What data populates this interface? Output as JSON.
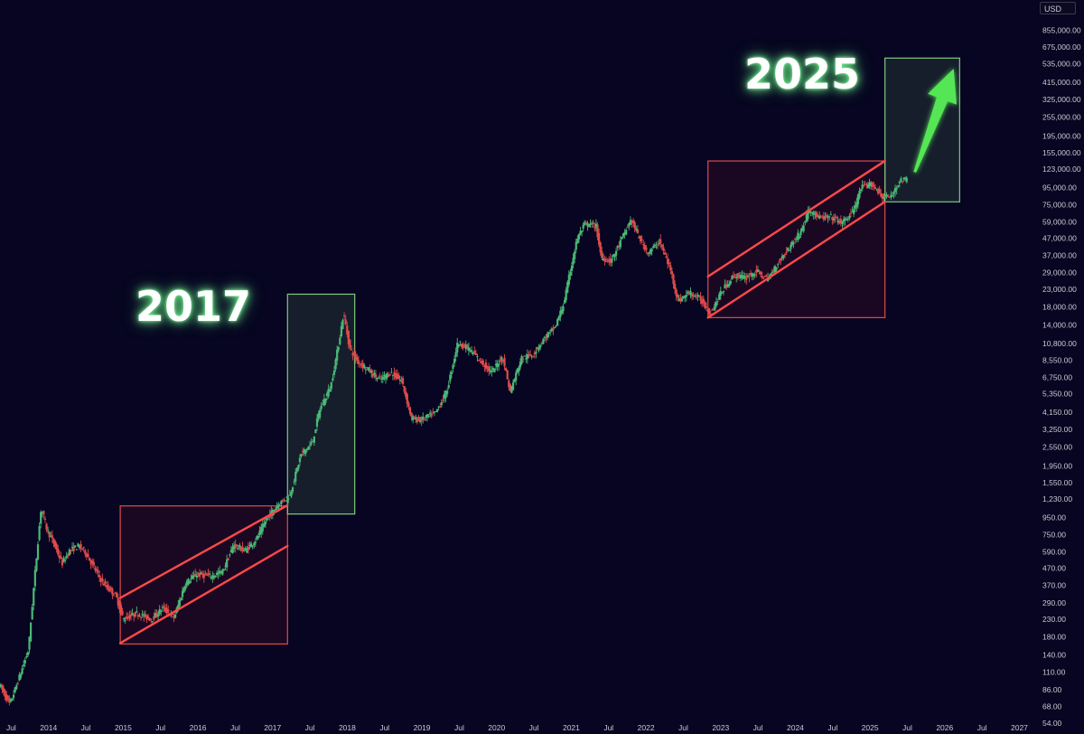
{
  "currency": "USD",
  "annotations": {
    "left": "2017",
    "right": "2025"
  },
  "colors": {
    "background": "#070521",
    "up_candle": "#4bb876",
    "down_candle": "#e04b4b",
    "accumulation_box": "#e04b4b",
    "breakout_box": "#7fc97f",
    "arrow": "#55e655",
    "axis_text": "#c9c9d4"
  },
  "chart_data": {
    "type": "candlestick",
    "scale": "log",
    "xlim": [
      2013.35,
      2027.2
    ],
    "ylim": [
      54,
      1150000
    ],
    "y_ticks": [
      "855,000.00",
      "675,000.00",
      "535,000.00",
      "415,000.00",
      "325,000.00",
      "255,000.00",
      "195,000.00",
      "155,000.00",
      "123,000.00",
      "95,000.00",
      "75,000.00",
      "59,000.00",
      "47,000.00",
      "37,000.00",
      "29,000.00",
      "23,000.00",
      "18,000.00",
      "14,000.00",
      "10,800.00",
      "8,550.00",
      "6,750.00",
      "5,350.00",
      "4,150.00",
      "3,250.00",
      "2,550.00",
      "1,950.00",
      "1,550.00",
      "1,230.00",
      "950.00",
      "750.00",
      "590.00",
      "470.00",
      "370.00",
      "290.00",
      "230.00",
      "180.00",
      "140.00",
      "110.00",
      "86.00",
      "68.00",
      "54.00"
    ],
    "x_ticks": [
      {
        "label": "Jul",
        "t": 2013.5
      },
      {
        "label": "2014",
        "t": 2014.0
      },
      {
        "label": "Jul",
        "t": 2014.5
      },
      {
        "label": "2015",
        "t": 2015.0
      },
      {
        "label": "Jul",
        "t": 2015.5
      },
      {
        "label": "2016",
        "t": 2016.0
      },
      {
        "label": "Jul",
        "t": 2016.5
      },
      {
        "label": "2017",
        "t": 2017.0
      },
      {
        "label": "Jul",
        "t": 2017.5
      },
      {
        "label": "2018",
        "t": 2018.0
      },
      {
        "label": "Jul",
        "t": 2018.5
      },
      {
        "label": "2019",
        "t": 2019.0
      },
      {
        "label": "Jul",
        "t": 2019.5
      },
      {
        "label": "2020",
        "t": 2020.0
      },
      {
        "label": "Jul",
        "t": 2020.5
      },
      {
        "label": "2021",
        "t": 2021.0
      },
      {
        "label": "Jul",
        "t": 2021.5
      },
      {
        "label": "2022",
        "t": 2022.0
      },
      {
        "label": "Jul",
        "t": 2022.5
      },
      {
        "label": "2023",
        "t": 2023.0
      },
      {
        "label": "Jul",
        "t": 2023.5
      },
      {
        "label": "2024",
        "t": 2024.0
      },
      {
        "label": "Jul",
        "t": 2024.5
      },
      {
        "label": "2025",
        "t": 2025.0
      },
      {
        "label": "Jul",
        "t": 2025.5
      },
      {
        "label": "2026",
        "t": 2026.0
      },
      {
        "label": "Jul",
        "t": 2026.5
      },
      {
        "label": "2027",
        "t": 2027.0
      }
    ],
    "price_path": [
      [
        2013.35,
        95
      ],
      [
        2013.5,
        70
      ],
      [
        2013.62,
        100
      ],
      [
        2013.75,
        150
      ],
      [
        2013.83,
        400
      ],
      [
        2013.92,
        1100
      ],
      [
        2014.0,
        800
      ],
      [
        2014.1,
        650
      ],
      [
        2014.2,
        500
      ],
      [
        2014.3,
        600
      ],
      [
        2014.42,
        640
      ],
      [
        2014.5,
        600
      ],
      [
        2014.62,
        480
      ],
      [
        2014.75,
        380
      ],
      [
        2014.92,
        320
      ],
      [
        2015.02,
        230
      ],
      [
        2015.2,
        250
      ],
      [
        2015.4,
        230
      ],
      [
        2015.55,
        270
      ],
      [
        2015.7,
        235
      ],
      [
        2015.85,
        380
      ],
      [
        2016.0,
        430
      ],
      [
        2016.2,
        420
      ],
      [
        2016.35,
        450
      ],
      [
        2016.5,
        650
      ],
      [
        2016.65,
        600
      ],
      [
        2016.8,
        700
      ],
      [
        2016.95,
        950
      ],
      [
        2017.1,
        1150
      ],
      [
        2017.25,
        1300
      ],
      [
        2017.4,
        2300
      ],
      [
        2017.55,
        2700
      ],
      [
        2017.65,
        4300
      ],
      [
        2017.8,
        6000
      ],
      [
        2017.9,
        10500
      ],
      [
        2017.97,
        16500
      ],
      [
        2018.05,
        10200
      ],
      [
        2018.15,
        8500
      ],
      [
        2018.3,
        7500
      ],
      [
        2018.45,
        6500
      ],
      [
        2018.6,
        7200
      ],
      [
        2018.75,
        6400
      ],
      [
        2018.88,
        3800
      ],
      [
        2019.0,
        3700
      ],
      [
        2019.2,
        4100
      ],
      [
        2019.35,
        5500
      ],
      [
        2019.5,
        11000
      ],
      [
        2019.65,
        10000
      ],
      [
        2019.8,
        8500
      ],
      [
        2019.95,
        7200
      ],
      [
        2020.1,
        9000
      ],
      [
        2020.2,
        5500
      ],
      [
        2020.35,
        8800
      ],
      [
        2020.5,
        9200
      ],
      [
        2020.65,
        11500
      ],
      [
        2020.8,
        13500
      ],
      [
        2020.92,
        19000
      ],
      [
        2021.0,
        29000
      ],
      [
        2021.1,
        47000
      ],
      [
        2021.2,
        57000
      ],
      [
        2021.35,
        56000
      ],
      [
        2021.42,
        36000
      ],
      [
        2021.55,
        34000
      ],
      [
        2021.7,
        47000
      ],
      [
        2021.82,
        61000
      ],
      [
        2021.92,
        48000
      ],
      [
        2022.05,
        38000
      ],
      [
        2022.2,
        45000
      ],
      [
        2022.35,
        30000
      ],
      [
        2022.45,
        19500
      ],
      [
        2022.6,
        22000
      ],
      [
        2022.75,
        20000
      ],
      [
        2022.88,
        16500
      ],
      [
        2023.05,
        23000
      ],
      [
        2023.2,
        28000
      ],
      [
        2023.35,
        27000
      ],
      [
        2023.5,
        29500
      ],
      [
        2023.65,
        26500
      ],
      [
        2023.8,
        34000
      ],
      [
        2023.95,
        42000
      ],
      [
        2024.1,
        52000
      ],
      [
        2024.2,
        70000
      ],
      [
        2024.35,
        62000
      ],
      [
        2024.5,
        63000
      ],
      [
        2024.65,
        58000
      ],
      [
        2024.8,
        69000
      ],
      [
        2024.9,
        95000
      ],
      [
        2025.05,
        100000
      ],
      [
        2025.18,
        84000
      ],
      [
        2025.3,
        83000
      ],
      [
        2025.4,
        103000
      ],
      [
        2025.5,
        107000
      ]
    ],
    "boxes": [
      {
        "kind": "accumulation",
        "t0": 2014.96,
        "t1": 2017.2,
        "p_low": 163,
        "p_high": 1120
      },
      {
        "kind": "breakout",
        "t0": 2017.2,
        "t1": 2018.1,
        "p_low": 1000,
        "p_high": 21500
      },
      {
        "kind": "accumulation",
        "t0": 2022.83,
        "t1": 2025.2,
        "p_low": 15500,
        "p_high": 138000
      },
      {
        "kind": "breakout",
        "t0": 2025.2,
        "t1": 2026.2,
        "p_low": 78000,
        "p_high": 580000
      }
    ],
    "channels": [
      {
        "upper": [
          [
            2014.96,
            310
          ],
          [
            2017.2,
            1130
          ]
        ],
        "lower": [
          [
            2014.96,
            165
          ],
          [
            2017.2,
            640
          ]
        ]
      },
      {
        "upper": [
          [
            2022.83,
            27500
          ],
          [
            2025.2,
            138000
          ]
        ],
        "lower": [
          [
            2022.83,
            15500
          ],
          [
            2025.2,
            78000
          ]
        ]
      }
    ],
    "arrow": {
      "from": [
        2025.6,
        118000
      ],
      "to": [
        2026.12,
        500000
      ]
    }
  }
}
